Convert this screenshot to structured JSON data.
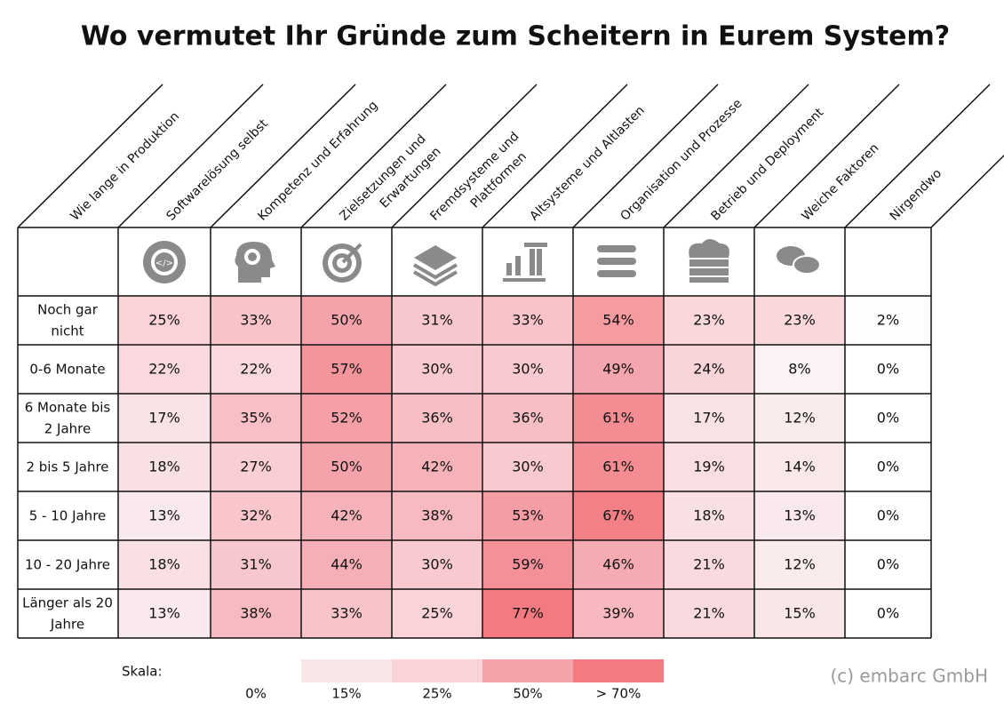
{
  "chart_data": {
    "type": "heatmap",
    "title": "Wo vermutet Ihr Gründe zum Scheitern in Eurem System?",
    "row_header": "Wie lange in Produktion",
    "columns": [
      [
        "Softwarelösung selbst"
      ],
      [
        "Kompetenz und Erfahrung"
      ],
      [
        "Zielsetzungen und",
        "Erwartungen"
      ],
      [
        "Fremdsysteme und",
        "Plattformen"
      ],
      [
        "Altsysteme und Altlasten"
      ],
      [
        "Organisation und Prozesse"
      ],
      [
        "Betrieb und Deployment"
      ],
      [
        "Weiche Faktoren"
      ],
      [
        "Nirgendwo"
      ]
    ],
    "rows": [
      [
        "Noch gar",
        "nicht"
      ],
      [
        "0-6 Monate"
      ],
      [
        "6 Monate bis",
        "2 Jahre"
      ],
      [
        "2 bis 5 Jahre"
      ],
      [
        "5 - 10 Jahre"
      ],
      [
        "10 - 20 Jahre"
      ],
      [
        "Länger als 20",
        "Jahre"
      ]
    ],
    "values": [
      [
        25,
        33,
        50,
        31,
        33,
        54,
        23,
        23,
        2
      ],
      [
        22,
        22,
        57,
        30,
        30,
        49,
        24,
        8,
        0
      ],
      [
        17,
        35,
        52,
        36,
        36,
        61,
        17,
        12,
        0
      ],
      [
        18,
        27,
        50,
        42,
        30,
        61,
        19,
        14,
        0
      ],
      [
        13,
        32,
        42,
        38,
        53,
        67,
        18,
        13,
        0
      ],
      [
        18,
        31,
        44,
        30,
        59,
        46,
        21,
        12,
        0
      ],
      [
        13,
        38,
        33,
        25,
        77,
        39,
        21,
        15,
        0
      ]
    ],
    "value_labels": [
      [
        "25%",
        "33%",
        "50%",
        "31%",
        "33%",
        "54%",
        "23%",
        "23%",
        "2%"
      ],
      [
        "22%",
        "22%",
        "57%",
        "30%",
        "30%",
        "49%",
        "24%",
        "8%",
        "0%"
      ],
      [
        "17%",
        "35%",
        "52%",
        "36%",
        "36%",
        "61%",
        "17%",
        "12%",
        "0%"
      ],
      [
        "18%",
        "27%",
        "50%",
        "42%",
        "30%",
        "61%",
        "19%",
        "14%",
        "0%"
      ],
      [
        "13%",
        "32%",
        "42%",
        "38%",
        "53%",
        "67%",
        "18%",
        "13%",
        "0%"
      ],
      [
        "18%",
        "31%",
        "44%",
        "30%",
        "59%",
        "46%",
        "21%",
        "12%",
        "0%"
      ],
      [
        "13%",
        "38%",
        "33%",
        "25%",
        "77%",
        "39%",
        "21%",
        "15%",
        "0%"
      ]
    ],
    "scale": {
      "label": "Skala:",
      "stops": [
        {
          "value": 0,
          "label": "0%",
          "color": "#ffffff"
        },
        {
          "value": 15,
          "label": "15%",
          "color": "#f9e6e9"
        },
        {
          "value": 25,
          "label": "25%",
          "color": "#f9d3d8"
        },
        {
          "value": 50,
          "label": "50%",
          "color": "#f5a3ab"
        },
        {
          "value": 70,
          "label": "> 70%",
          "color": "#f37a80"
        }
      ]
    },
    "copyright": "(c) embarc GmbH"
  }
}
